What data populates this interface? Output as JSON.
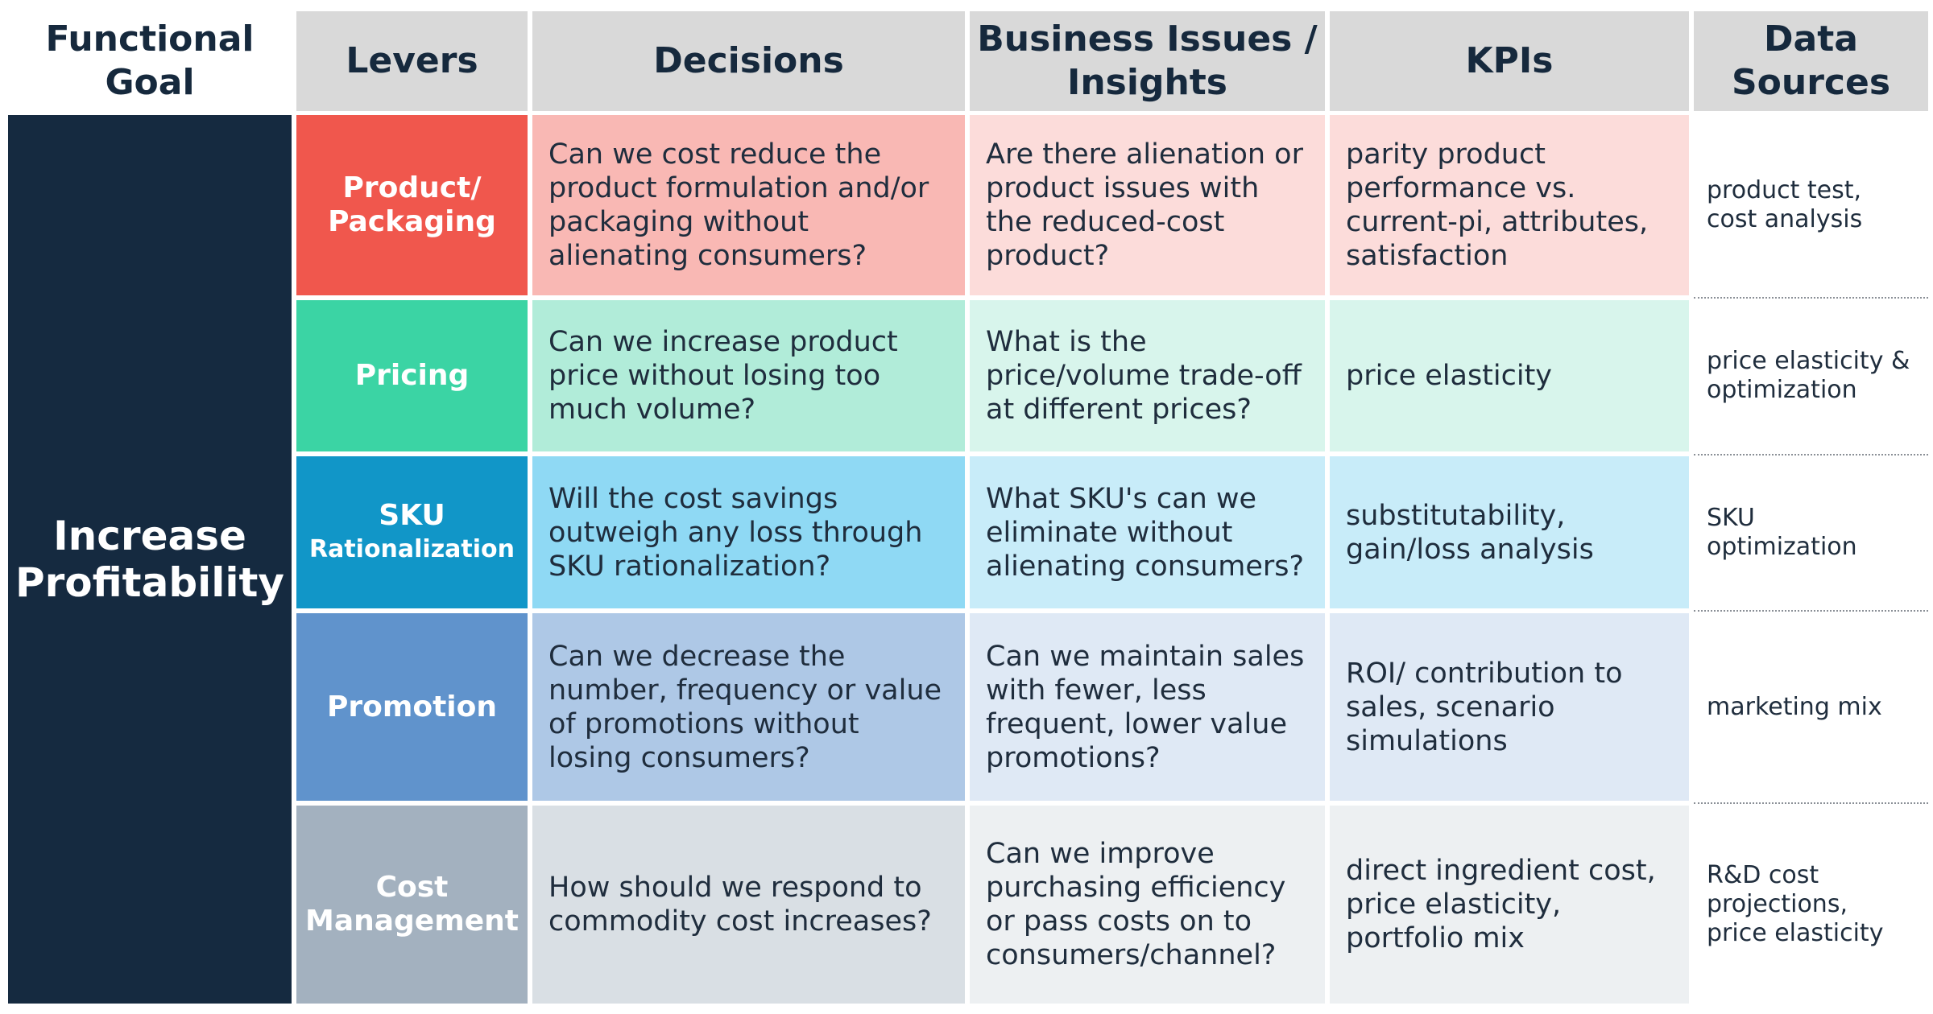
{
  "headers": {
    "goal": [
      "Functional",
      "Goal"
    ],
    "levers": "Levers",
    "decisions": "Decisions",
    "issues": [
      "Business Issues /",
      "Insights"
    ],
    "kpis": "KPIs",
    "sources": [
      "Data",
      "Sources"
    ]
  },
  "goal": [
    "Increase",
    "Profitability"
  ],
  "rows": [
    {
      "lever": [
        "Product/",
        "Packaging"
      ],
      "decision": "Can we cost reduce the product formulation and/or packaging without alienating consumers?",
      "issue": "Are there alienation or product issues with the reduced-cost product?",
      "kpi": "parity product performance vs. current-pi, attributes, satisfaction",
      "source": "product test, cost analysis"
    },
    {
      "lever": [
        "Pricing"
      ],
      "decision": "Can we increase product price without losing too much volume?",
      "issue": "What is the price/volume trade-off at different prices?",
      "kpi": "price elasticity",
      "source": "price elasticity & optimization"
    },
    {
      "lever": [
        "SKU",
        "Rationalization"
      ],
      "decision": "Will the cost savings outweigh any loss through SKU rationalization?",
      "issue": "What SKU's can we eliminate without alienating consumers?",
      "kpi": "substitutability, gain/loss analysis",
      "source": "SKU optimization"
    },
    {
      "lever": [
        "Promotion"
      ],
      "decision": "Can we decrease the number, frequency or value of promotions without losing consumers?",
      "issue": "Can we maintain sales with fewer, less frequent, lower value promotions?",
      "kpi": "ROI/ contribution to sales, scenario simulations",
      "source": "marketing mix"
    },
    {
      "lever": [
        "Cost",
        "Management"
      ],
      "decision": "How should we respond to commodity cost increases?",
      "issue": "Can we improve purchasing efficiency or pass costs on to consumers/channel?",
      "kpi": "direct ingredient cost, price elasticity, portfolio mix",
      "source": "R&D cost projections, price elasticity"
    }
  ],
  "colors": {
    "row1": {
      "lever": "#f0574d",
      "decision": "#f9b8b4",
      "issue": "#fcdcda",
      "kpi": "#fcdcda"
    },
    "row2": {
      "lever": "#3bd4a4",
      "decision": "#b1ecd9",
      "issue": "#d8f5ec",
      "kpi": "#d8f5ec"
    },
    "row3": {
      "lever": "#1196c8",
      "decision": "#8fd9f4",
      "issue": "#c8ecf9",
      "kpi": "#c8ecf9"
    },
    "row4": {
      "lever": "#6093cc",
      "decision": "#aec8e6",
      "issue": "#dfe9f5",
      "kpi": "#dfe9f5"
    },
    "row5": {
      "lever": "#a3b1bf",
      "decision": "#d9dfe4",
      "issue": "#edf0f2",
      "kpi": "#edf0f2"
    }
  }
}
